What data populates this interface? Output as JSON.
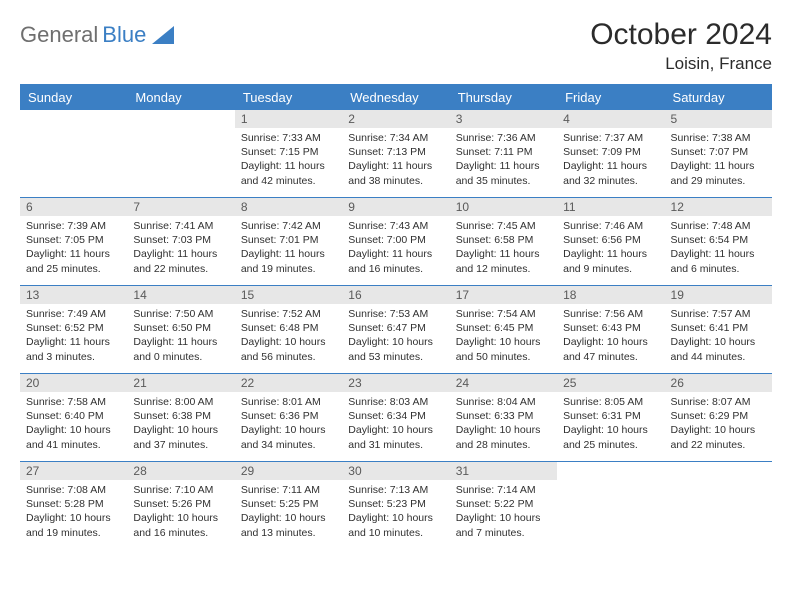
{
  "logo": {
    "part1": "General",
    "part2": "Blue"
  },
  "title": "October 2024",
  "location": "Loisin, France",
  "days": [
    "Sunday",
    "Monday",
    "Tuesday",
    "Wednesday",
    "Thursday",
    "Friday",
    "Saturday"
  ],
  "colors": {
    "accent": "#3b7fc4",
    "header_bg": "#3b7fc4",
    "daynum_bg": "#e7e7e7"
  },
  "weeks": [
    [
      null,
      null,
      {
        "n": "1",
        "sr": "7:33 AM",
        "ss": "7:15 PM",
        "dl": "11 hours and 42 minutes."
      },
      {
        "n": "2",
        "sr": "7:34 AM",
        "ss": "7:13 PM",
        "dl": "11 hours and 38 minutes."
      },
      {
        "n": "3",
        "sr": "7:36 AM",
        "ss": "7:11 PM",
        "dl": "11 hours and 35 minutes."
      },
      {
        "n": "4",
        "sr": "7:37 AM",
        "ss": "7:09 PM",
        "dl": "11 hours and 32 minutes."
      },
      {
        "n": "5",
        "sr": "7:38 AM",
        "ss": "7:07 PM",
        "dl": "11 hours and 29 minutes."
      }
    ],
    [
      {
        "n": "6",
        "sr": "7:39 AM",
        "ss": "7:05 PM",
        "dl": "11 hours and 25 minutes."
      },
      {
        "n": "7",
        "sr": "7:41 AM",
        "ss": "7:03 PM",
        "dl": "11 hours and 22 minutes."
      },
      {
        "n": "8",
        "sr": "7:42 AM",
        "ss": "7:01 PM",
        "dl": "11 hours and 19 minutes."
      },
      {
        "n": "9",
        "sr": "7:43 AM",
        "ss": "7:00 PM",
        "dl": "11 hours and 16 minutes."
      },
      {
        "n": "10",
        "sr": "7:45 AM",
        "ss": "6:58 PM",
        "dl": "11 hours and 12 minutes."
      },
      {
        "n": "11",
        "sr": "7:46 AM",
        "ss": "6:56 PM",
        "dl": "11 hours and 9 minutes."
      },
      {
        "n": "12",
        "sr": "7:48 AM",
        "ss": "6:54 PM",
        "dl": "11 hours and 6 minutes."
      }
    ],
    [
      {
        "n": "13",
        "sr": "7:49 AM",
        "ss": "6:52 PM",
        "dl": "11 hours and 3 minutes."
      },
      {
        "n": "14",
        "sr": "7:50 AM",
        "ss": "6:50 PM",
        "dl": "11 hours and 0 minutes."
      },
      {
        "n": "15",
        "sr": "7:52 AM",
        "ss": "6:48 PM",
        "dl": "10 hours and 56 minutes."
      },
      {
        "n": "16",
        "sr": "7:53 AM",
        "ss": "6:47 PM",
        "dl": "10 hours and 53 minutes."
      },
      {
        "n": "17",
        "sr": "7:54 AM",
        "ss": "6:45 PM",
        "dl": "10 hours and 50 minutes."
      },
      {
        "n": "18",
        "sr": "7:56 AM",
        "ss": "6:43 PM",
        "dl": "10 hours and 47 minutes."
      },
      {
        "n": "19",
        "sr": "7:57 AM",
        "ss": "6:41 PM",
        "dl": "10 hours and 44 minutes."
      }
    ],
    [
      {
        "n": "20",
        "sr": "7:58 AM",
        "ss": "6:40 PM",
        "dl": "10 hours and 41 minutes."
      },
      {
        "n": "21",
        "sr": "8:00 AM",
        "ss": "6:38 PM",
        "dl": "10 hours and 37 minutes."
      },
      {
        "n": "22",
        "sr": "8:01 AM",
        "ss": "6:36 PM",
        "dl": "10 hours and 34 minutes."
      },
      {
        "n": "23",
        "sr": "8:03 AM",
        "ss": "6:34 PM",
        "dl": "10 hours and 31 minutes."
      },
      {
        "n": "24",
        "sr": "8:04 AM",
        "ss": "6:33 PM",
        "dl": "10 hours and 28 minutes."
      },
      {
        "n": "25",
        "sr": "8:05 AM",
        "ss": "6:31 PM",
        "dl": "10 hours and 25 minutes."
      },
      {
        "n": "26",
        "sr": "8:07 AM",
        "ss": "6:29 PM",
        "dl": "10 hours and 22 minutes."
      }
    ],
    [
      {
        "n": "27",
        "sr": "7:08 AM",
        "ss": "5:28 PM",
        "dl": "10 hours and 19 minutes."
      },
      {
        "n": "28",
        "sr": "7:10 AM",
        "ss": "5:26 PM",
        "dl": "10 hours and 16 minutes."
      },
      {
        "n": "29",
        "sr": "7:11 AM",
        "ss": "5:25 PM",
        "dl": "10 hours and 13 minutes."
      },
      {
        "n": "30",
        "sr": "7:13 AM",
        "ss": "5:23 PM",
        "dl": "10 hours and 10 minutes."
      },
      {
        "n": "31",
        "sr": "7:14 AM",
        "ss": "5:22 PM",
        "dl": "10 hours and 7 minutes."
      },
      null,
      null
    ]
  ],
  "labels": {
    "sunrise": "Sunrise:",
    "sunset": "Sunset:",
    "daylight": "Daylight:"
  }
}
